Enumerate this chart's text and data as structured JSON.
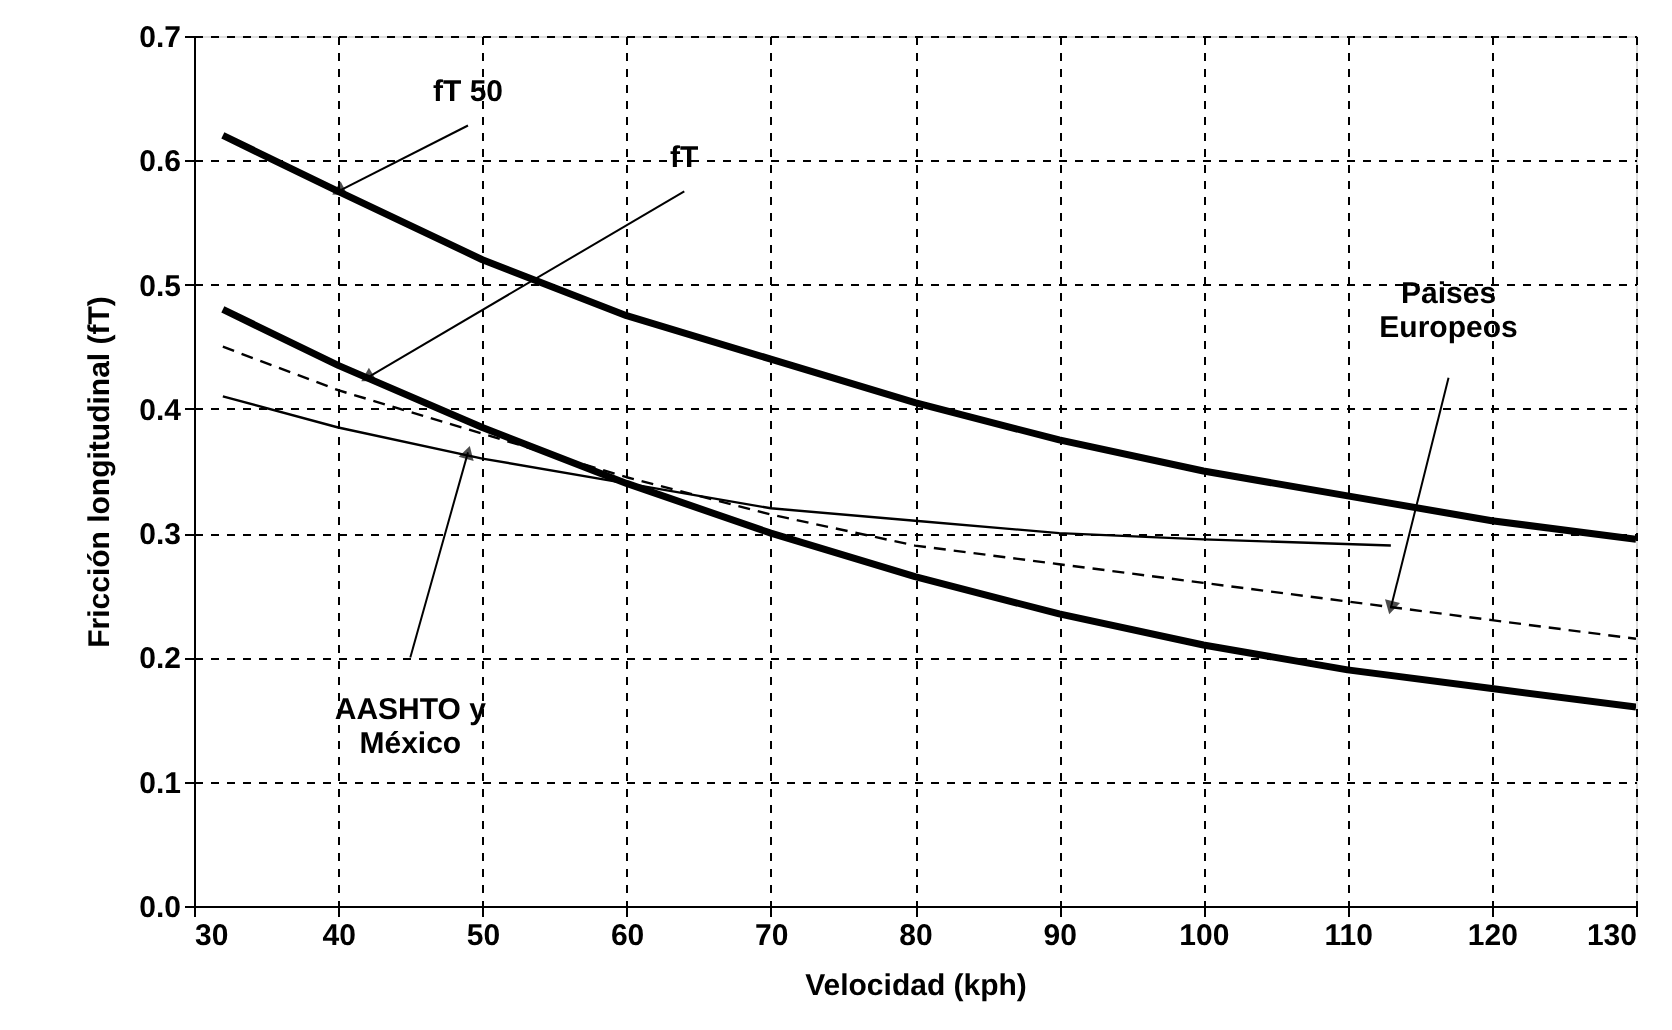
{
  "chart_data": {
    "type": "line",
    "xlabel": "Velocidad (kph)",
    "ylabel": "Fricción longitudinal (fT)",
    "xlim": [
      30,
      130
    ],
    "xticks": [
      30,
      40,
      50,
      60,
      70,
      80,
      90,
      100,
      110,
      120,
      130
    ],
    "ylim": [
      0,
      0.7
    ],
    "yticks": [
      {
        "value": 0,
        "label": "0.0"
      },
      0.1,
      0.2,
      0.3,
      0.4,
      0.5,
      0.6,
      0.7
    ],
    "grid": true,
    "marker": "none",
    "series": [
      {
        "color": "#000000",
        "line_style": "solid",
        "x": [
          32,
          40,
          50,
          60,
          70,
          80,
          90,
          100,
          110,
          120,
          130
        ],
        "values": [
          0.62,
          0.575,
          0.52,
          0.475,
          0.44,
          0.405,
          0.375,
          0.35,
          0.33,
          0.31,
          0.295
        ]
      },
      {
        "color": "#000000",
        "line_style": "solid",
        "x": [
          32,
          40,
          50,
          60,
          70,
          80,
          90,
          100,
          110,
          120,
          130
        ],
        "values": [
          0.48,
          0.435,
          0.385,
          0.34,
          0.3,
          0.265,
          0.235,
          0.21,
          0.19,
          0.175,
          0.16
        ]
      },
      {
        "color": "#000000",
        "line_style": "dashed",
        "x": [
          32,
          40,
          50,
          60,
          70,
          80,
          90,
          100,
          110,
          120,
          130
        ],
        "values": [
          0.45,
          0.415,
          0.38,
          0.345,
          0.315,
          0.29,
          0.275,
          0.26,
          0.245,
          0.23,
          0.215
        ]
      },
      {
        "color": "#000000",
        "line_style": "solid",
        "x": [
          32,
          40,
          50,
          60,
          70,
          80,
          90,
          100,
          113
        ],
        "values": [
          0.41,
          0.385,
          0.36,
          0.34,
          0.32,
          0.31,
          0.3,
          0.295,
          0.29
        ]
      }
    ],
    "annotations": [
      {
        "text": "fT 50",
        "x": 40,
        "y": 0.575
      },
      {
        "text": "fT",
        "x": 42,
        "y": 0.425
      },
      {
        "text": "Paises\nEuropeos",
        "x": 113,
        "y": 0.24
      },
      {
        "text": "AASHTO y\nMéxico",
        "x": 49,
        "y": 0.365
      }
    ]
  }
}
